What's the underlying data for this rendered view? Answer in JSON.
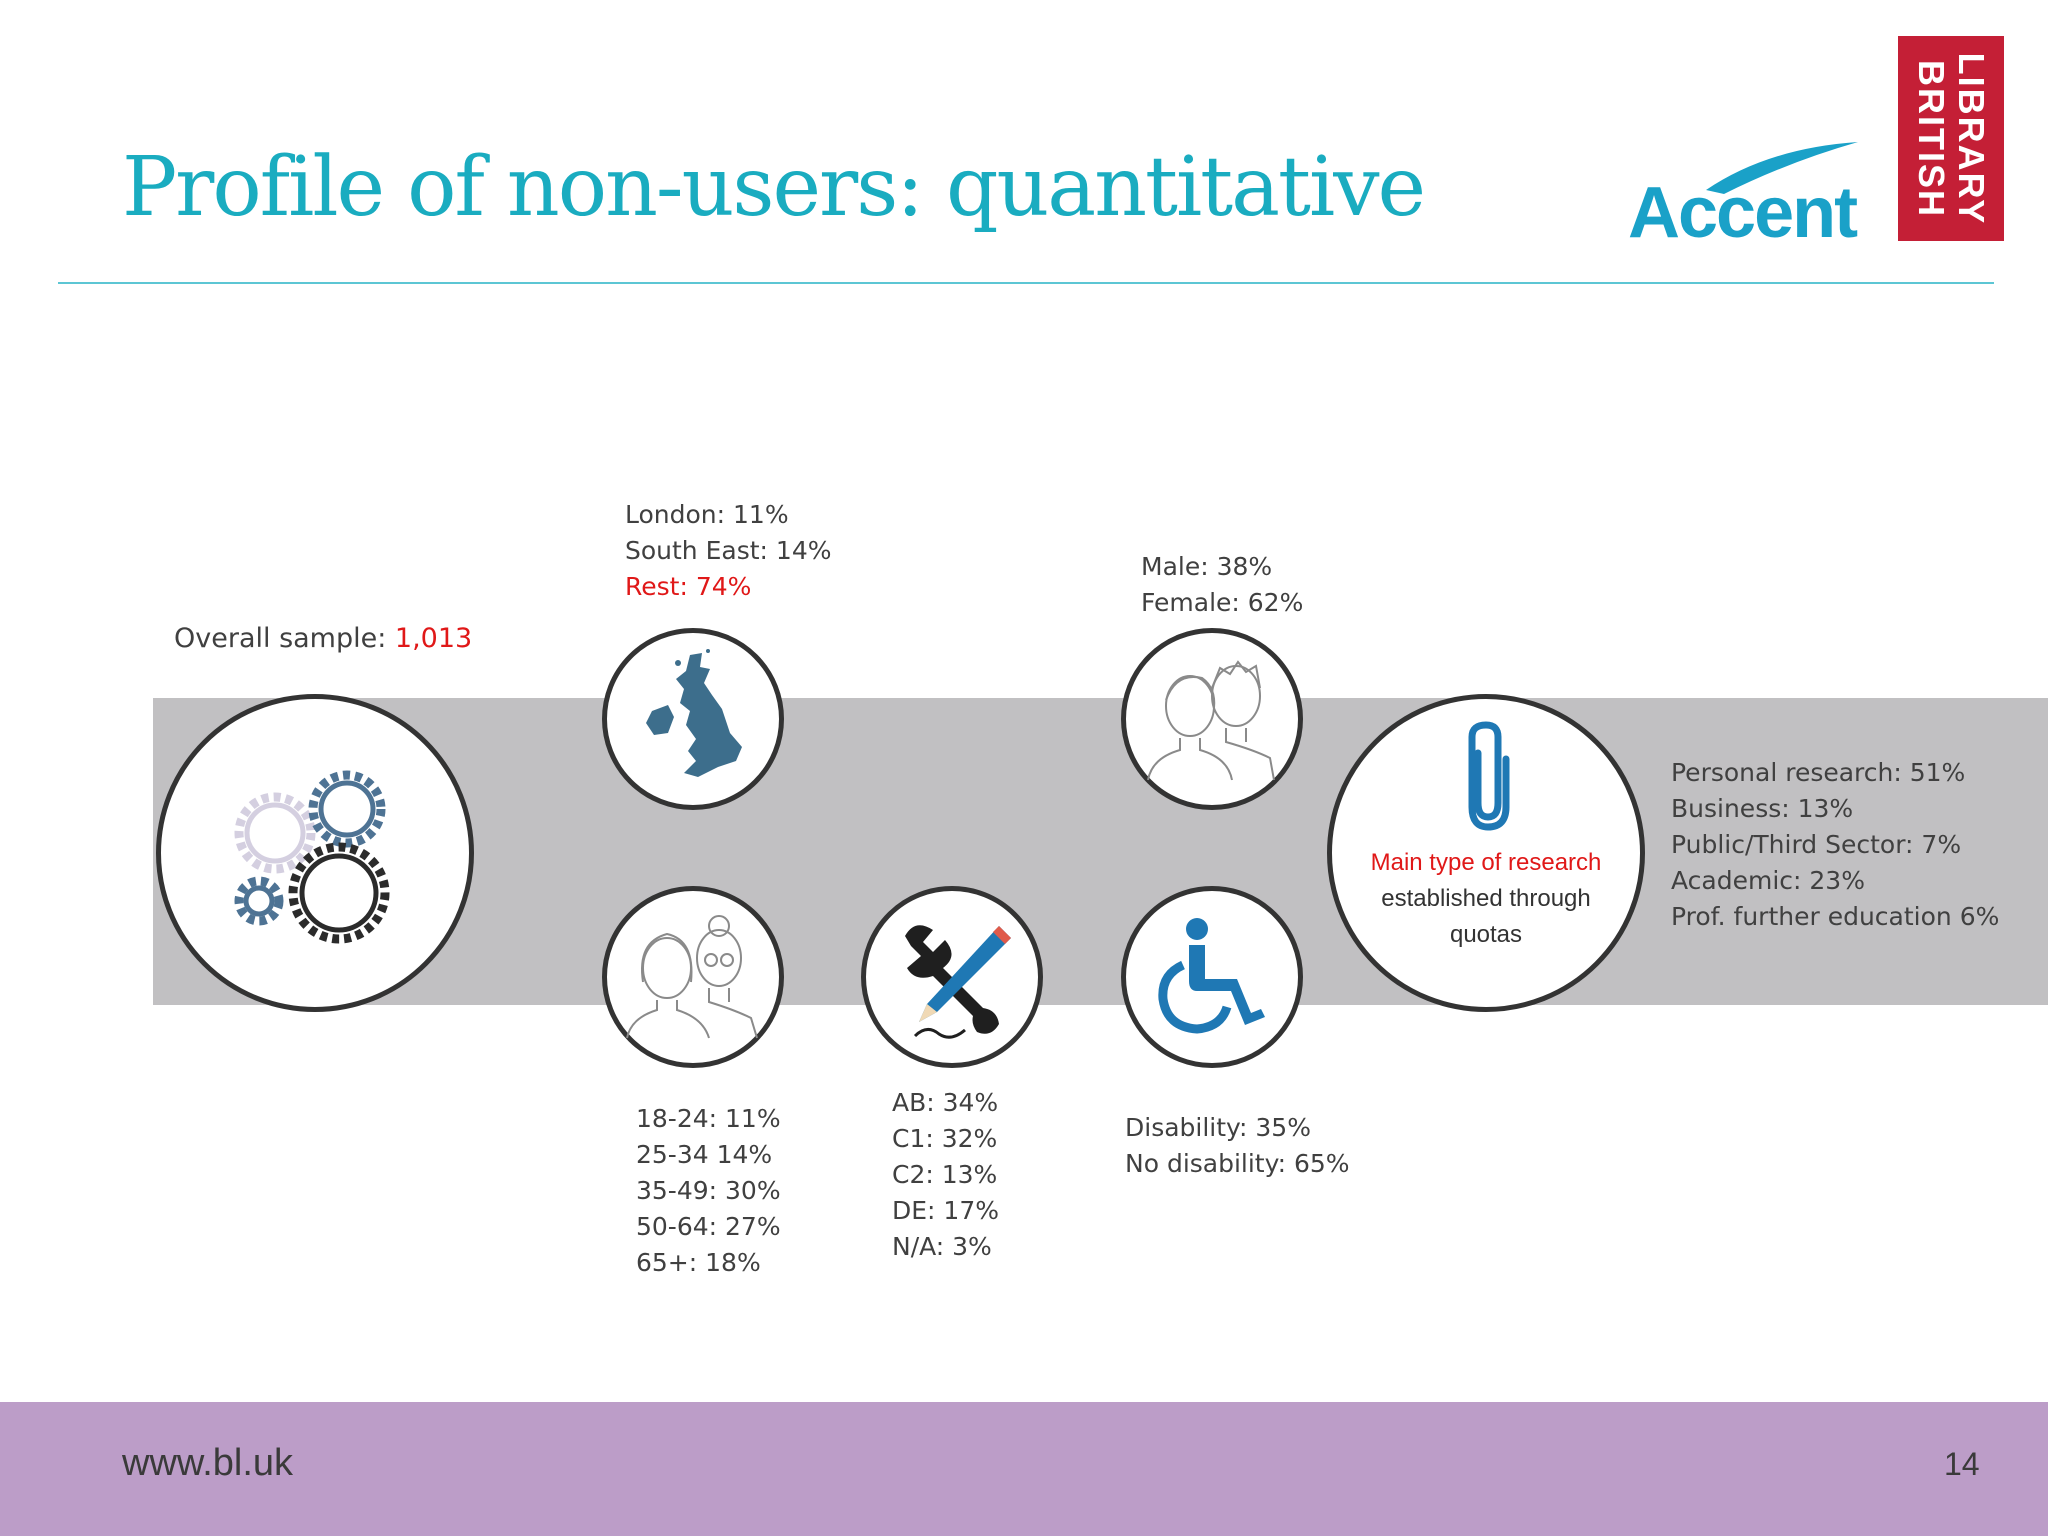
{
  "slide": {
    "title": "Profile of non-users: quantitative",
    "page_number": "14",
    "footer_url": "www.bl.uk"
  },
  "logos": {
    "accent": "Accent",
    "british_library_line1": "BRITISH",
    "british_library_line2": "LIBRARY"
  },
  "sample": {
    "label": "Overall sample: ",
    "value": "1,013"
  },
  "region": {
    "london": "London: 11%",
    "south_east": "South East: 14%",
    "rest": "Rest: 74%"
  },
  "gender": {
    "male": "Male: 38%",
    "female": "Female: 62%"
  },
  "age": [
    "18-24: 11%",
    "25-34 14%",
    "35-49: 30%",
    "50-64: 27%",
    "65+: 18%"
  ],
  "social_grade": [
    "AB: 34%",
    "C1: 32%",
    "C2: 13%",
    "DE: 17%",
    "N/A: 3%"
  ],
  "disability": {
    "yes": "Disability: 35%",
    "no": "No disability: 65%"
  },
  "research": {
    "circle_line1": "Main type of research",
    "circle_line2": "established through",
    "circle_line3": "quotas",
    "items": [
      "Personal research: 51%",
      "Business: 13%",
      "Public/Third Sector: 7%",
      "Academic: 23%",
      "Prof. further education 6%"
    ]
  },
  "icons": {
    "gears": "gears-icon",
    "uk_map": "uk-map-icon",
    "people_gender": "man-woman-icon",
    "people_age": "young-old-women-icon",
    "tools": "pencil-wrench-icon",
    "wheelchair": "wheelchair-icon",
    "paperclip": "paperclip-icon"
  },
  "colors": {
    "title": "#1aacc0",
    "highlight": "#e01818",
    "band": "#c1c0c2",
    "footer": "#bc9dc8",
    "bl_red": "#c41f36",
    "icon_blue": "#1f78b4"
  }
}
